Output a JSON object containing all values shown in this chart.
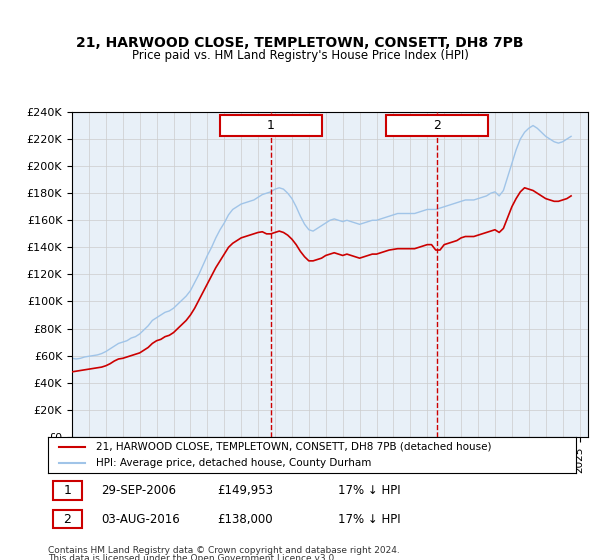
{
  "title": "21, HARWOOD CLOSE, TEMPLETOWN, CONSETT, DH8 7PB",
  "subtitle": "Price paid vs. HM Land Registry's House Price Index (HPI)",
  "legend_line1": "21, HARWOOD CLOSE, TEMPLETOWN, CONSETT, DH8 7PB (detached house)",
  "legend_line2": "HPI: Average price, detached house, County Durham",
  "footnote1": "Contains HM Land Registry data © Crown copyright and database right 2024.",
  "footnote2": "This data is licensed under the Open Government Licence v3.0.",
  "annotation1_date": "29-SEP-2006",
  "annotation1_price": "£149,953",
  "annotation1_hpi": "17% ↓ HPI",
  "annotation2_date": "03-AUG-2016",
  "annotation2_price": "£138,000",
  "annotation2_hpi": "17% ↓ HPI",
  "vline1_x": 2006.75,
  "vline2_x": 2016.58,
  "ylim_min": 0,
  "ylim_max": 240000,
  "xlim_min": 1995,
  "xlim_max": 2025.5,
  "hpi_color": "#a0c4e8",
  "price_color": "#cc0000",
  "bg_color": "#e8f0f8",
  "grid_color": "#cccccc",
  "annotation_box_color": "#cc0000",
  "hpi_data_x": [
    1995.0,
    1995.25,
    1995.5,
    1995.75,
    1996.0,
    1996.25,
    1996.5,
    1996.75,
    1997.0,
    1997.25,
    1997.5,
    1997.75,
    1998.0,
    1998.25,
    1998.5,
    1998.75,
    1999.0,
    1999.25,
    1999.5,
    1999.75,
    2000.0,
    2000.25,
    2000.5,
    2000.75,
    2001.0,
    2001.25,
    2001.5,
    2001.75,
    2002.0,
    2002.25,
    2002.5,
    2002.75,
    2003.0,
    2003.25,
    2003.5,
    2003.75,
    2004.0,
    2004.25,
    2004.5,
    2004.75,
    2005.0,
    2005.25,
    2005.5,
    2005.75,
    2006.0,
    2006.25,
    2006.5,
    2006.75,
    2007.0,
    2007.25,
    2007.5,
    2007.75,
    2008.0,
    2008.25,
    2008.5,
    2008.75,
    2009.0,
    2009.25,
    2009.5,
    2009.75,
    2010.0,
    2010.25,
    2010.5,
    2010.75,
    2011.0,
    2011.25,
    2011.5,
    2011.75,
    2012.0,
    2012.25,
    2012.5,
    2012.75,
    2013.0,
    2013.25,
    2013.5,
    2013.75,
    2014.0,
    2014.25,
    2014.5,
    2014.75,
    2015.0,
    2015.25,
    2015.5,
    2015.75,
    2016.0,
    2016.25,
    2016.5,
    2016.75,
    2017.0,
    2017.25,
    2017.5,
    2017.75,
    2018.0,
    2018.25,
    2018.5,
    2018.75,
    2019.0,
    2019.25,
    2019.5,
    2019.75,
    2020.0,
    2020.25,
    2020.5,
    2020.75,
    2021.0,
    2021.25,
    2021.5,
    2021.75,
    2022.0,
    2022.25,
    2022.5,
    2022.75,
    2023.0,
    2023.25,
    2023.5,
    2023.75,
    2024.0,
    2024.25,
    2024.5
  ],
  "hpi_data_y": [
    58000,
    57500,
    58000,
    59000,
    59500,
    60000,
    60500,
    61500,
    63000,
    65000,
    67000,
    69000,
    70000,
    71000,
    73000,
    74000,
    76000,
    79000,
    82000,
    86000,
    88000,
    90000,
    92000,
    93000,
    95000,
    98000,
    101000,
    104000,
    108000,
    114000,
    120000,
    127000,
    134000,
    140000,
    147000,
    153000,
    158000,
    164000,
    168000,
    170000,
    172000,
    173000,
    174000,
    175000,
    177000,
    179000,
    180000,
    181000,
    183000,
    184000,
    183000,
    180000,
    176000,
    170000,
    163000,
    157000,
    153000,
    152000,
    154000,
    156000,
    158000,
    160000,
    161000,
    160000,
    159000,
    160000,
    159000,
    158000,
    157000,
    158000,
    159000,
    160000,
    160000,
    161000,
    162000,
    163000,
    164000,
    165000,
    165000,
    165000,
    165000,
    165000,
    166000,
    167000,
    168000,
    168000,
    168000,
    169000,
    170000,
    171000,
    172000,
    173000,
    174000,
    175000,
    175000,
    175000,
    176000,
    177000,
    178000,
    180000,
    181000,
    178000,
    182000,
    192000,
    202000,
    212000,
    220000,
    225000,
    228000,
    230000,
    228000,
    225000,
    222000,
    220000,
    218000,
    217000,
    218000,
    220000,
    222000
  ],
  "price_data_x": [
    1995.0,
    1995.25,
    1995.5,
    1995.75,
    1996.0,
    1996.25,
    1996.5,
    1996.75,
    1997.0,
    1997.25,
    1997.5,
    1997.75,
    1998.0,
    1998.25,
    1998.5,
    1998.75,
    1999.0,
    1999.25,
    1999.5,
    1999.75,
    2000.0,
    2000.25,
    2000.5,
    2000.75,
    2001.0,
    2001.25,
    2001.5,
    2001.75,
    2002.0,
    2002.25,
    2002.5,
    2002.75,
    2003.0,
    2003.25,
    2003.5,
    2003.75,
    2004.0,
    2004.25,
    2004.5,
    2004.75,
    2005.0,
    2005.25,
    2005.5,
    2005.75,
    2006.0,
    2006.25,
    2006.5,
    2006.75,
    2007.0,
    2007.25,
    2007.5,
    2007.75,
    2008.0,
    2008.25,
    2008.5,
    2008.75,
    2009.0,
    2009.25,
    2009.5,
    2009.75,
    2010.0,
    2010.25,
    2010.5,
    2010.75,
    2011.0,
    2011.25,
    2011.5,
    2011.75,
    2012.0,
    2012.25,
    2012.5,
    2012.75,
    2013.0,
    2013.25,
    2013.5,
    2013.75,
    2014.0,
    2014.25,
    2014.5,
    2014.75,
    2015.0,
    2015.25,
    2015.5,
    2015.75,
    2016.0,
    2016.25,
    2016.5,
    2016.75,
    2017.0,
    2017.25,
    2017.5,
    2017.75,
    2018.0,
    2018.25,
    2018.5,
    2018.75,
    2019.0,
    2019.25,
    2019.5,
    2019.75,
    2020.0,
    2020.25,
    2020.5,
    2020.75,
    2021.0,
    2021.25,
    2021.5,
    2021.75,
    2022.0,
    2022.25,
    2022.5,
    2022.75,
    2023.0,
    2023.25,
    2023.5,
    2023.75,
    2024.0,
    2024.25,
    2024.5
  ],
  "price_data_y": [
    48000,
    48500,
    49000,
    49500,
    50000,
    50500,
    51000,
    51500,
    52500,
    54000,
    56000,
    57500,
    58000,
    59000,
    60000,
    61000,
    62000,
    64000,
    66000,
    69000,
    71000,
    72000,
    74000,
    75000,
    77000,
    80000,
    83000,
    86000,
    90000,
    95000,
    101000,
    107000,
    113000,
    119000,
    125000,
    130000,
    135000,
    140000,
    143000,
    145000,
    147000,
    148000,
    149000,
    150000,
    151000,
    151500,
    149953,
    149953,
    151000,
    152000,
    151000,
    149000,
    146000,
    142000,
    137000,
    133000,
    130000,
    130000,
    131000,
    132000,
    134000,
    135000,
    136000,
    135000,
    134000,
    135000,
    134000,
    133000,
    132000,
    133000,
    134000,
    135000,
    135000,
    136000,
    137000,
    138000,
    138500,
    139000,
    139000,
    139000,
    139000,
    139000,
    140000,
    141000,
    142000,
    142000,
    138000,
    138000,
    142000,
    143000,
    144000,
    145000,
    147000,
    148000,
    148000,
    148000,
    149000,
    150000,
    151000,
    152000,
    153000,
    151000,
    154000,
    162000,
    170000,
    176000,
    181000,
    184000,
    183000,
    182000,
    180000,
    178000,
    176000,
    175000,
    174000,
    174000,
    175000,
    176000,
    178000
  ]
}
